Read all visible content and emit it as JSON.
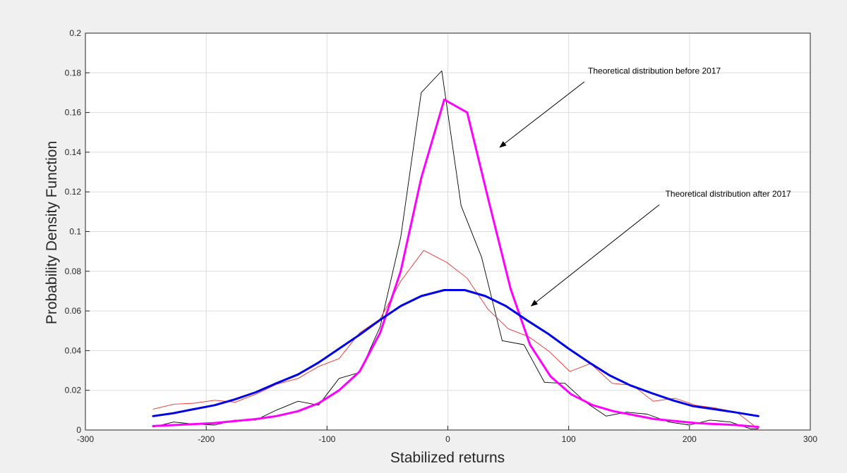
{
  "chart_data": {
    "type": "line",
    "title": "",
    "xlabel": "Stabilized returns",
    "ylabel": "Probability Density Function",
    "xlim": [
      -300,
      300
    ],
    "ylim": [
      0,
      0.2
    ],
    "grid": true,
    "legend": "none",
    "xticks": [
      "-300",
      "-200",
      "-100",
      "0",
      "100",
      "200",
      "300"
    ],
    "yticks": [
      "0",
      "0.02",
      "0.04",
      "0.06",
      "0.08",
      "0.1",
      "0.12",
      "0.14",
      "0.16",
      "0.18",
      "0.2"
    ],
    "series": [
      {
        "color": "#000000",
        "width": 0.9,
        "x": [
          -244,
          -227,
          -210,
          -193,
          -176,
          -159,
          -142,
          -124,
          -107,
          -90,
          -73,
          -56,
          -39,
          -22,
          -5,
          11,
          28,
          45,
          63,
          80,
          97,
          114,
          131,
          148,
          165,
          183,
          200,
          217,
          234,
          251,
          257
        ],
        "y": [
          0.0015,
          0.004,
          0.003,
          0.0025,
          0.005,
          0.005,
          0.01,
          0.0145,
          0.0125,
          0.026,
          0.029,
          0.052,
          0.097,
          0.17,
          0.181,
          0.113,
          0.087,
          0.045,
          0.043,
          0.024,
          0.0235,
          0.014,
          0.007,
          0.009,
          0.008,
          0.004,
          0.0025,
          0.005,
          0.004,
          0.0005,
          0.0005
        ]
      },
      {
        "color": "#e8302e",
        "width": 0.9,
        "x": [
          -244,
          -227,
          -210,
          -193,
          -176,
          -159,
          -142,
          -124,
          -107,
          -90,
          -73,
          -56,
          -39,
          -20,
          -1,
          16,
          33,
          50,
          67,
          84,
          101,
          118,
          136,
          153,
          170,
          188,
          205,
          222,
          239,
          257
        ],
        "y": [
          0.0105,
          0.013,
          0.0135,
          0.015,
          0.014,
          0.018,
          0.023,
          0.026,
          0.032,
          0.036,
          0.049,
          0.056,
          0.075,
          0.0905,
          0.0845,
          0.0765,
          0.061,
          0.051,
          0.047,
          0.0395,
          0.0295,
          0.0335,
          0.0235,
          0.0225,
          0.0145,
          0.016,
          0.0125,
          0.011,
          0.009,
          0.0005
        ]
      },
      {
        "color": "#ff00ff",
        "width": 3,
        "x": [
          -244,
          -227,
          -210,
          -193,
          -176,
          -159,
          -142,
          -124,
          -107,
          -90,
          -73,
          -56,
          -39,
          -22,
          -3,
          16,
          34,
          52,
          68,
          85,
          102,
          120,
          137,
          154,
          171,
          188,
          205,
          222,
          239,
          257
        ],
        "y": [
          0.002,
          0.0025,
          0.003,
          0.0035,
          0.0045,
          0.0055,
          0.007,
          0.0095,
          0.0135,
          0.02,
          0.0295,
          0.049,
          0.08,
          0.127,
          0.1665,
          0.16,
          0.115,
          0.071,
          0.043,
          0.027,
          0.018,
          0.0125,
          0.0095,
          0.0075,
          0.0055,
          0.0045,
          0.0035,
          0.003,
          0.0025,
          0.0015
        ]
      },
      {
        "color": "#0000e6",
        "width": 3,
        "x": [
          -244,
          -227,
          -210,
          -193,
          -176,
          -159,
          -142,
          -124,
          -107,
          -90,
          -73,
          -56,
          -39,
          -22,
          -3,
          14,
          31,
          48,
          65,
          83,
          100,
          117,
          134,
          151,
          169,
          186,
          203,
          220,
          237,
          257
        ],
        "y": [
          0.007,
          0.0085,
          0.0105,
          0.0125,
          0.0155,
          0.019,
          0.0235,
          0.028,
          0.034,
          0.041,
          0.048,
          0.0555,
          0.0625,
          0.0675,
          0.0705,
          0.0705,
          0.0675,
          0.0625,
          0.0555,
          0.0485,
          0.041,
          0.034,
          0.0275,
          0.0225,
          0.0185,
          0.015,
          0.012,
          0.0105,
          0.009,
          0.007
        ]
      }
    ],
    "annotations": [
      {
        "text": "Theoretical distribution before 2017",
        "text_x": 116,
        "text_y": 0.1795,
        "arrow_from": [
          113,
          0.1755
        ],
        "arrow_to": [
          43,
          0.1425
        ]
      },
      {
        "text": "Theoretical distribution after 2017",
        "text_x": 180,
        "text_y": 0.1175,
        "arrow_from": [
          175,
          0.1135
        ],
        "arrow_to": [
          69,
          0.0625
        ]
      }
    ]
  }
}
